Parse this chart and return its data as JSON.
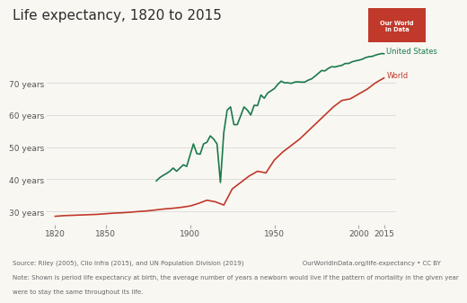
{
  "title": "Life expectancy, 1820 to 2015",
  "title_color": "#2c2c2c",
  "title_fontsize": 11,
  "bg_color": "#f9f7f2",
  "us_color": "#1a7a4a",
  "world_color": "#c0392b",
  "ylabel_ticks": [
    "30 years",
    "40 years",
    "50 years",
    "60 years",
    "70 years"
  ],
  "ytick_vals": [
    30,
    40,
    50,
    60,
    70
  ],
  "xtick_vals": [
    1820,
    1850,
    1900,
    1950,
    2000,
    2015
  ],
  "xlim": [
    1815,
    2022
  ],
  "ylim": [
    26,
    82
  ],
  "grid_color": "#d8d8d8",
  "source_line1": "Source: Riley (2005), Clio Infra (2015), and UN Population Division (2019)                             OurWorldInData.org/life-expectancy • CC BY",
  "source_line2": "Note: Shown is period life expectancy at birth, the average number of years a newborn would live if the pattern of mortality in the given year",
  "source_line3": "were to stay the same throughout its life.",
  "source_fontsize": 5.0,
  "label_us": "United States",
  "label_world": "World",
  "logo_text": "Our World\nin Data",
  "logo_bg": "#c0392b",
  "logo_fg": "#ffffff",
  "world_years": [
    1820,
    1825,
    1830,
    1835,
    1840,
    1845,
    1850,
    1855,
    1860,
    1865,
    1870,
    1875,
    1880,
    1885,
    1890,
    1895,
    1900,
    1905,
    1910,
    1915,
    1920,
    1925,
    1930,
    1935,
    1940,
    1945,
    1950,
    1955,
    1960,
    1965,
    1970,
    1975,
    1980,
    1985,
    1990,
    1995,
    2000,
    2005,
    2010,
    2015
  ],
  "world_le": [
    28.5,
    28.7,
    28.8,
    28.9,
    29.0,
    29.1,
    29.3,
    29.5,
    29.6,
    29.8,
    30.0,
    30.2,
    30.5,
    30.8,
    31.0,
    31.3,
    31.7,
    32.5,
    33.5,
    33.0,
    32.0,
    37.0,
    39.0,
    41.0,
    42.5,
    42.0,
    46.0,
    48.5,
    50.5,
    52.5,
    55.0,
    57.5,
    60.0,
    62.5,
    64.5,
    65.0,
    66.5,
    68.0,
    70.0,
    71.5
  ],
  "us_years": [
    1880,
    1882,
    1884,
    1886,
    1888,
    1890,
    1892,
    1894,
    1896,
    1898,
    1900,
    1902,
    1904,
    1906,
    1908,
    1910,
    1912,
    1914,
    1916,
    1918,
    1920,
    1922,
    1924,
    1926,
    1928,
    1930,
    1932,
    1934,
    1936,
    1938,
    1940,
    1942,
    1944,
    1946,
    1948,
    1950,
    1952,
    1954,
    1956,
    1958,
    1960,
    1962,
    1964,
    1966,
    1968,
    1970,
    1972,
    1974,
    1976,
    1978,
    1980,
    1982,
    1984,
    1986,
    1988,
    1990,
    1992,
    1994,
    1996,
    1998,
    2000,
    2002,
    2004,
    2006,
    2008,
    2010,
    2012,
    2014,
    2015
  ],
  "us_le": [
    39.5,
    40.5,
    41.2,
    41.8,
    42.5,
    43.5,
    42.5,
    43.5,
    44.5,
    44.0,
    47.5,
    51.0,
    48.0,
    47.8,
    51.0,
    51.5,
    53.5,
    52.5,
    51.0,
    39.0,
    54.5,
    61.5,
    62.5,
    57.0,
    57.0,
    59.7,
    62.5,
    61.5,
    60.0,
    63.0,
    62.9,
    66.2,
    65.2,
    66.8,
    67.5,
    68.2,
    69.5,
    70.5,
    70.0,
    70.0,
    69.8,
    70.2,
    70.3,
    70.2,
    70.2,
    70.8,
    71.2,
    72.0,
    72.9,
    73.8,
    73.7,
    74.5,
    75.0,
    74.9,
    75.2,
    75.4,
    76.0,
    76.0,
    76.5,
    76.8,
    77.0,
    77.3,
    77.8,
    78.1,
    78.2,
    78.6,
    78.9,
    79.1,
    79.0
  ]
}
